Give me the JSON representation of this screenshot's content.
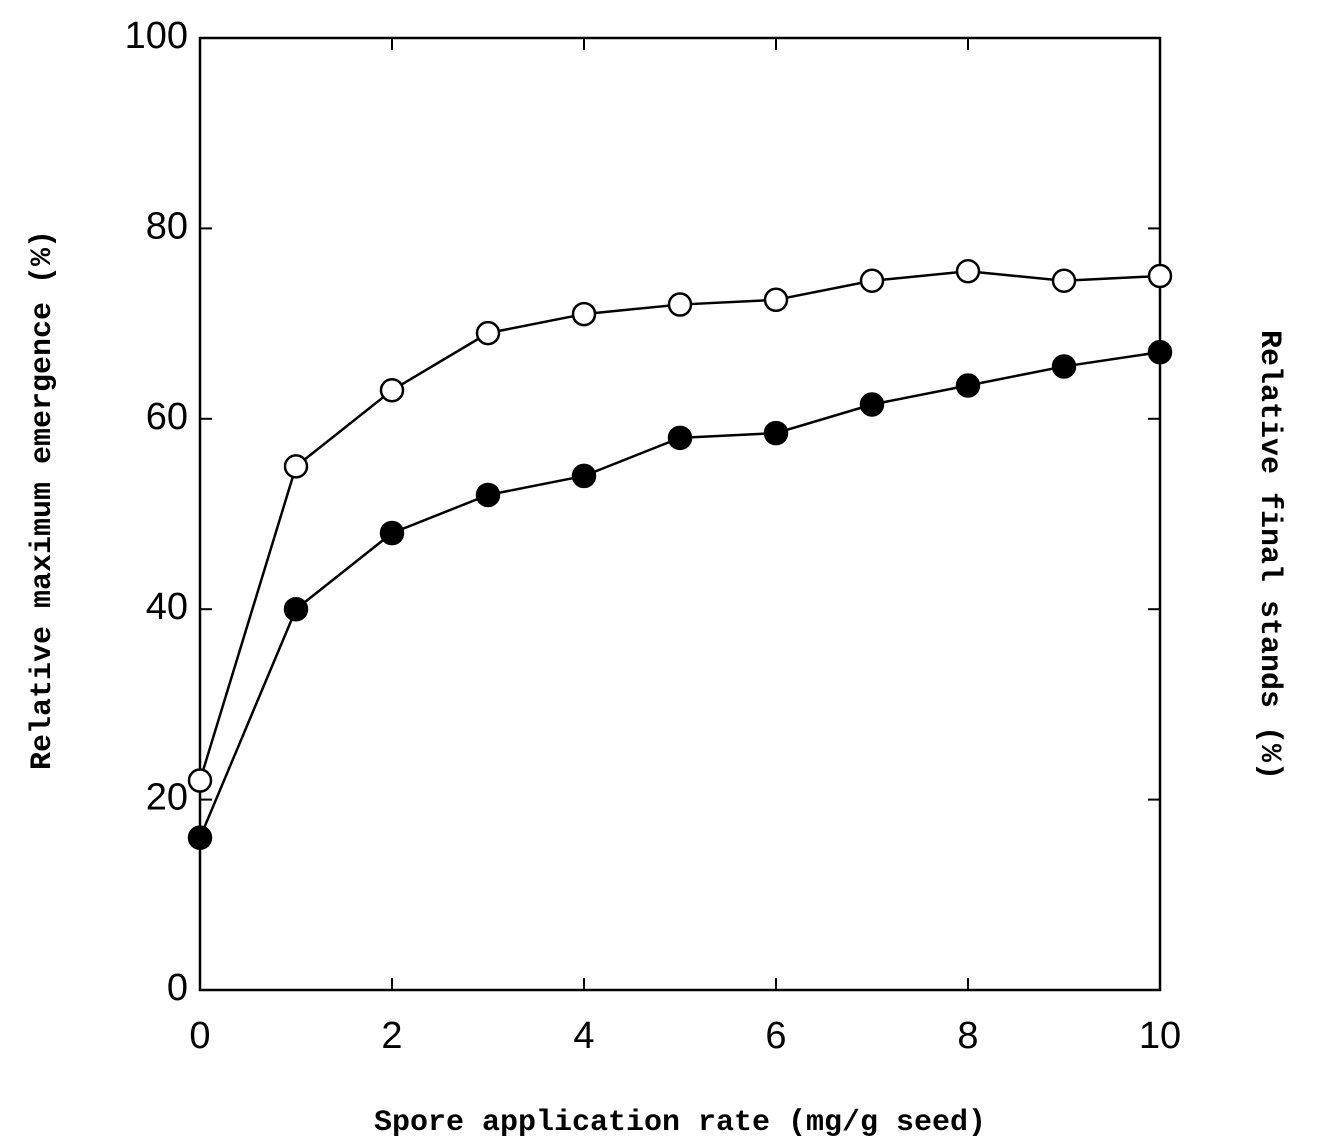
{
  "chart_data": {
    "type": "line",
    "xlabel": "Spore application rate (mg/g seed)",
    "ylabel": "Relative maximum emergence (%)",
    "y2label": "Relative final stands (%)",
    "x": [
      0,
      1,
      2,
      3,
      4,
      5,
      6,
      7,
      8,
      9,
      10
    ],
    "series": [
      {
        "color": "#000000",
        "fill": "#ffffff",
        "values": [
          22,
          55,
          63,
          69,
          71,
          72,
          72.5,
          74.5,
          75.5,
          74.5,
          75
        ]
      },
      {
        "color": "#000000",
        "fill": "#000000",
        "values": [
          16,
          40,
          48,
          52,
          54,
          58,
          58.5,
          61.5,
          63.5,
          65.5,
          67
        ]
      }
    ],
    "xlim": [
      0,
      10
    ],
    "xticks": [
      0,
      2,
      4,
      6,
      8,
      10
    ],
    "ylim": [
      0,
      100
    ],
    "yticks": [
      0,
      20,
      40,
      60,
      80,
      100
    ],
    "grid": false
  }
}
